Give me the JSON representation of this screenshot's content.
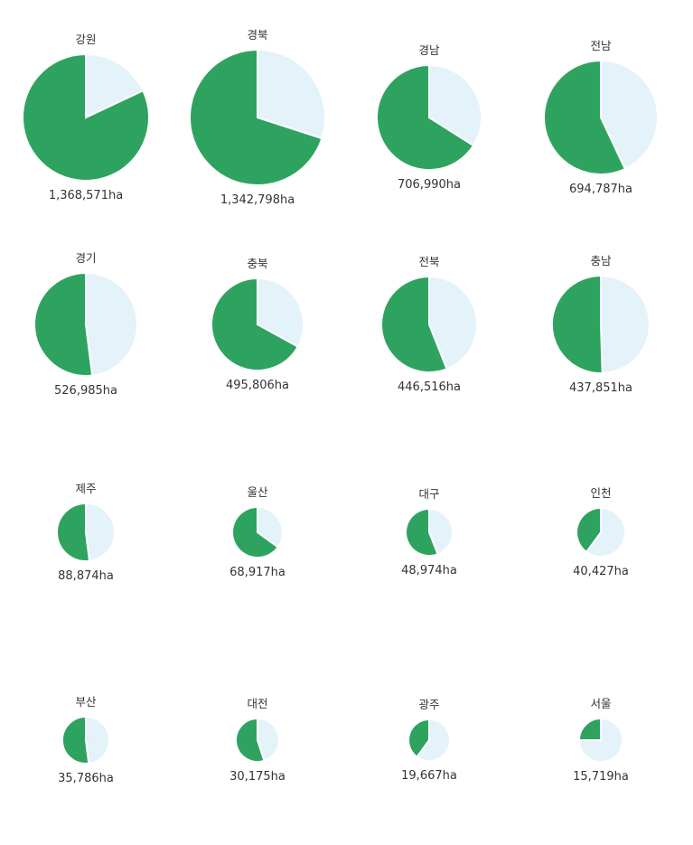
{
  "colors": {
    "forest": "#2ea35f",
    "other": "#e4f2f9",
    "stroke": "#ffffff"
  },
  "chart_data": {
    "type": "pie",
    "value_unit": "ha",
    "pies": [
      {
        "region": "강원",
        "area_label": "1,368,571ha",
        "area": 1368571,
        "share": 0.82
      },
      {
        "region": "경북",
        "area_label": "1,342,798ha",
        "area": 1342798,
        "share": 0.7
      },
      {
        "region": "경남",
        "area_label": "706,990ha",
        "area": 706990,
        "share": 0.66
      },
      {
        "region": "전남",
        "area_label": "694,787ha",
        "area": 694787,
        "share": 0.57
      },
      {
        "region": "경기",
        "area_label": "526,985ha",
        "area": 526985,
        "share": 0.52
      },
      {
        "region": "충북",
        "area_label": "495,806ha",
        "area": 495806,
        "share": 0.67
      },
      {
        "region": "전북",
        "area_label": "446,516ha",
        "area": 446516,
        "share": 0.56
      },
      {
        "region": "충남",
        "area_label": "437,851ha",
        "area": 437851,
        "share": 0.505
      },
      {
        "region": "제주",
        "area_label": "88,874ha",
        "area": 88874,
        "share": 0.52
      },
      {
        "region": "울산",
        "area_label": "68,917ha",
        "area": 68917,
        "share": 0.65
      },
      {
        "region": "대구",
        "area_label": "48,974ha",
        "area": 48974,
        "share": 0.56
      },
      {
        "region": "인천",
        "area_label": "40,427ha",
        "area": 40427,
        "share": 0.4
      },
      {
        "region": "부산",
        "area_label": "35,786ha",
        "area": 35786,
        "share": 0.52
      },
      {
        "region": "대전",
        "area_label": "30,175ha",
        "area": 30175,
        "share": 0.55
      },
      {
        "region": "광주",
        "area_label": "19,667ha",
        "area": 19667,
        "share": 0.4
      },
      {
        "region": "서울",
        "area_label": "15,719ha",
        "area": 15719,
        "share": 0.25
      }
    ]
  }
}
